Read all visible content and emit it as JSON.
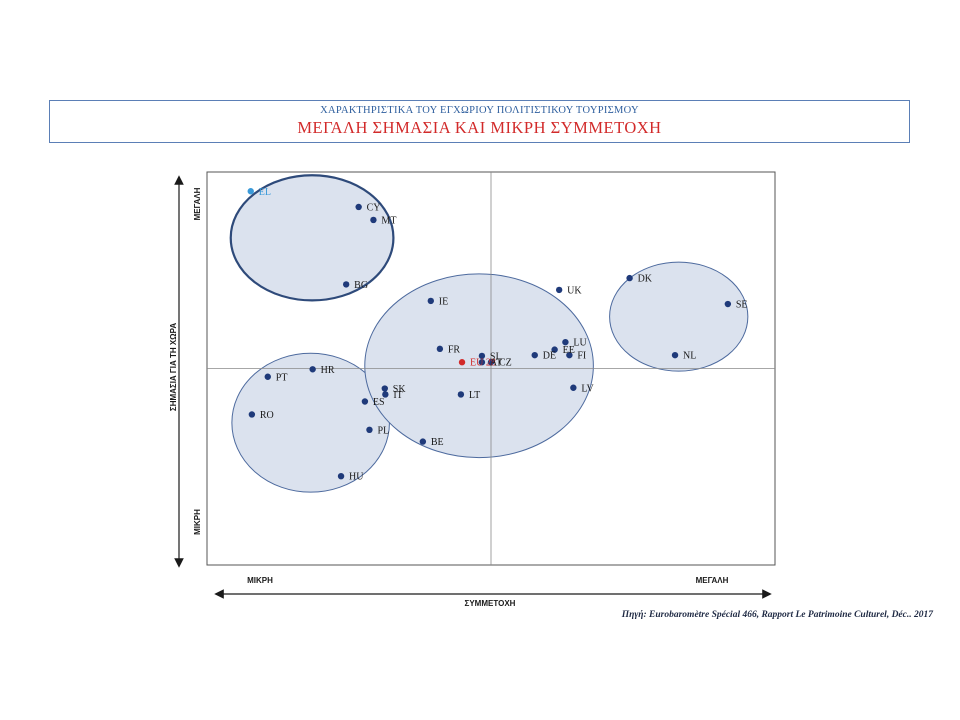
{
  "header": {
    "subtitle": "ΧΑΡΑΚΤΗΡΙΣΤΙΚΑ ΤΟΥ ΕΓΧΩΡΙΟΥ ΠΟΛΙΤΙΣΤΙΚΟΥ ΤΟΥΡΙΣΜΟΥ",
    "title": "ΜΕΓΑΛΗ ΣΗΜΑΣΙΑ ΚΑΙ ΜΙΚΡΗ ΣΥΜΜΕΤΟΧΗ"
  },
  "source": "Πηγή: Eurobaromètre Spécial 466, Rapport  Le Patrimoine Culturel, Déc.. 2017",
  "chart_data": {
    "type": "scatter",
    "xlabel": "ΣΥΜΜΕΤΟΧΗ",
    "ylabel": "ΣΗΜΑΣΙΑ ΓΙΑ ΤΗ ΧΩΡΑ",
    "x_low_label": "ΜΙΚΡΗ",
    "x_high_label": "ΜΕΓΑΛΗ",
    "y_low_label": "ΜΙΚΡΗ",
    "y_high_label": "ΜΕΓΑΛΗ",
    "xlim": [
      0,
      100
    ],
    "ylim": [
      0,
      100
    ],
    "quadrant_lines": {
      "x": 50,
      "y": 50
    },
    "colors": {
      "point": "#1f3a7a",
      "highlight_el": "#3a9ad9",
      "highlight_eu": "#d22a2a",
      "cluster_fill": "#dbe2ee",
      "cluster_edge": "#4d6a9e",
      "cluster_edge_strong": "#2e4a7a"
    },
    "points": [
      {
        "label": "EL",
        "x": 7.7,
        "y": 95.1,
        "color": "highlight_el"
      },
      {
        "label": "CY",
        "x": 26.7,
        "y": 91.1
      },
      {
        "label": "MT",
        "x": 29.3,
        "y": 87.8
      },
      {
        "label": "BG",
        "x": 24.5,
        "y": 71.4
      },
      {
        "label": "IE",
        "x": 39.4,
        "y": 67.2
      },
      {
        "label": "UK",
        "x": 62.0,
        "y": 70.0
      },
      {
        "label": "DK",
        "x": 74.4,
        "y": 73.0
      },
      {
        "label": "SE",
        "x": 91.7,
        "y": 66.4
      },
      {
        "label": "FR",
        "x": 41.0,
        "y": 55.0
      },
      {
        "label": "SI",
        "x": 48.4,
        "y": 53.2
      },
      {
        "label": "LU",
        "x": 63.1,
        "y": 56.7
      },
      {
        "label": "EE",
        "x": 61.2,
        "y": 54.8
      },
      {
        "label": "DE",
        "x": 57.7,
        "y": 53.4
      },
      {
        "label": "FI",
        "x": 63.8,
        "y": 53.4
      },
      {
        "label": "NL",
        "x": 82.4,
        "y": 53.4
      },
      {
        "label": "EU 28",
        "x": 44.9,
        "y": 51.6,
        "color": "highlight_eu"
      },
      {
        "label": "AT",
        "x": 48.4,
        "y": 51.6
      },
      {
        "label": "CZ",
        "x": 50.0,
        "y": 51.6
      },
      {
        "label": "HR",
        "x": 18.6,
        "y": 49.8
      },
      {
        "label": "PT",
        "x": 10.7,
        "y": 47.9
      },
      {
        "label": "SK",
        "x": 31.3,
        "y": 44.9
      },
      {
        "label": "IT",
        "x": 31.4,
        "y": 43.4
      },
      {
        "label": "LV",
        "x": 64.5,
        "y": 45.1
      },
      {
        "label": "LT",
        "x": 44.7,
        "y": 43.4
      },
      {
        "label": "ES",
        "x": 27.8,
        "y": 41.6
      },
      {
        "label": "RO",
        "x": 7.9,
        "y": 38.3
      },
      {
        "label": "PL",
        "x": 28.6,
        "y": 34.4
      },
      {
        "label": "BE",
        "x": 38.0,
        "y": 31.4
      },
      {
        "label": "HU",
        "x": 23.6,
        "y": 22.6
      }
    ],
    "clusters": [
      {
        "members": [
          "EL",
          "CY",
          "MT",
          "BG"
        ],
        "emphasis": true
      },
      {
        "members": [
          "HR",
          "PT",
          "RO",
          "ES",
          "PL",
          "HU"
        ]
      },
      {
        "members": [
          "IE",
          "UK",
          "FR",
          "SI",
          "LU",
          "EE",
          "DE",
          "FI",
          "EU 28",
          "AT",
          "CZ",
          "SK",
          "IT",
          "LV",
          "LT",
          "BE"
        ]
      },
      {
        "members": [
          "DK",
          "SE",
          "NL"
        ]
      }
    ]
  }
}
